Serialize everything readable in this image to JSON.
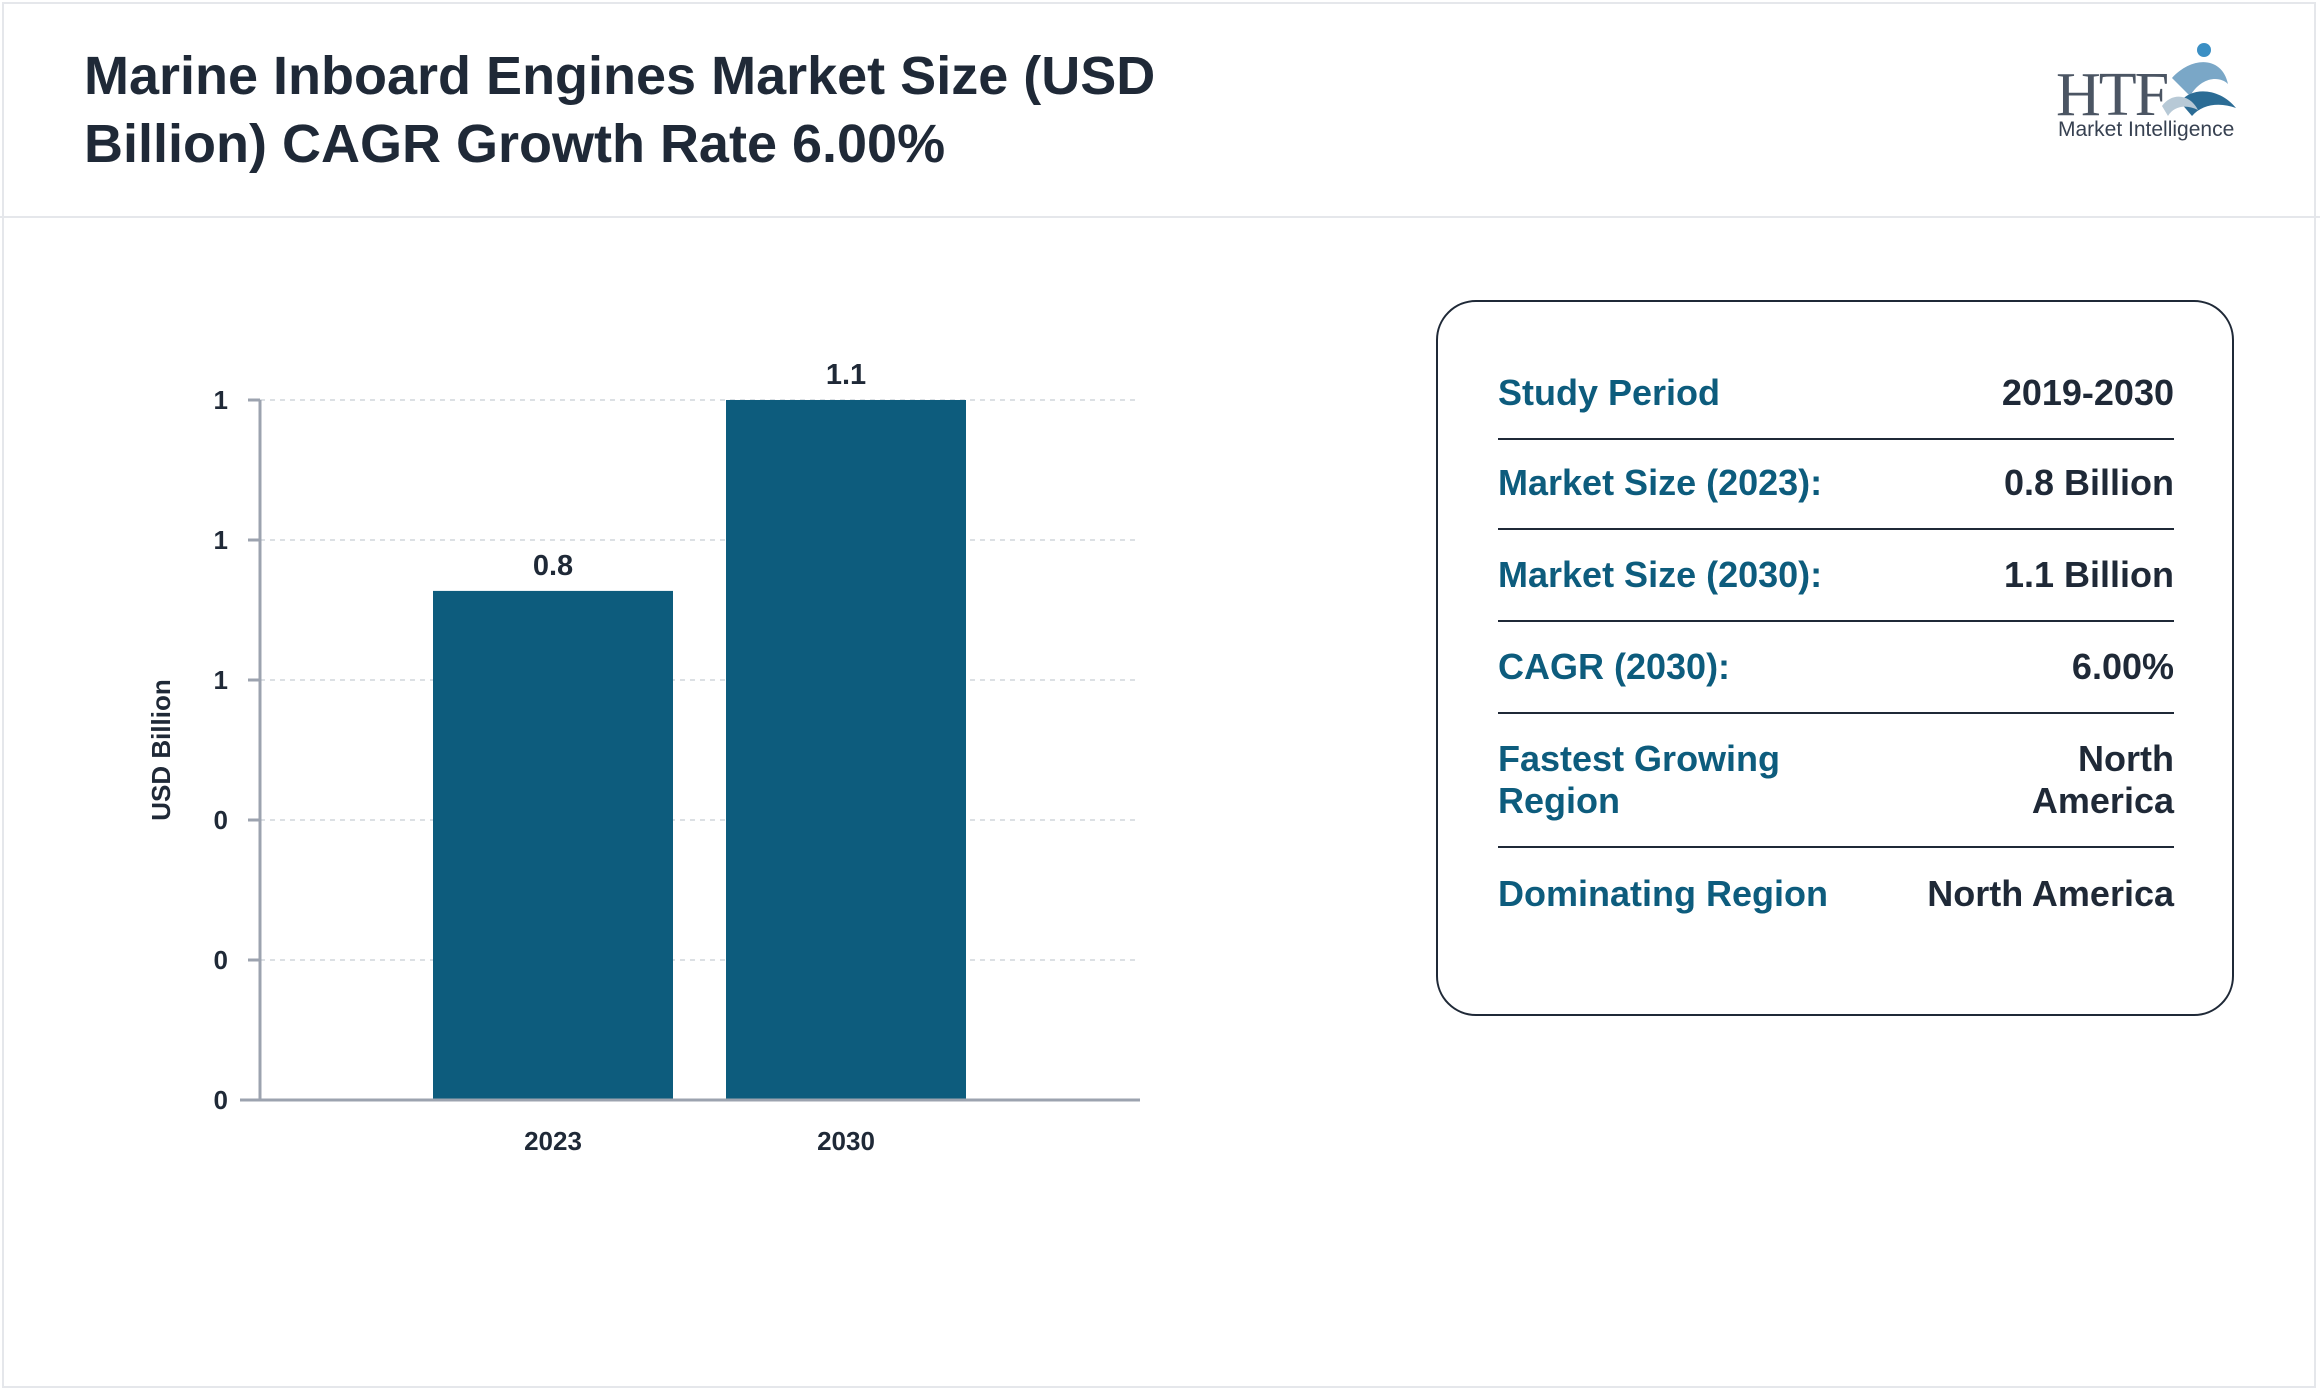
{
  "header": {
    "title_line1": "Marine Inboard Engines Market Size (USD",
    "title_line2": "Billion) CAGR Growth Rate 6.00%",
    "logo_mark": "HTF",
    "logo_sub": "Market Intelligence"
  },
  "colors": {
    "bar": "#0d5c7d",
    "label": "#0d5c7d",
    "text": "#1f2937",
    "axis": "#9ca3af"
  },
  "chart_data": {
    "type": "bar",
    "categories": [
      "2023",
      "2030"
    ],
    "values": [
      0.8,
      1.1
    ],
    "value_labels": [
      "0.8",
      "1.1"
    ],
    "ylabel": "USD Billion",
    "ytick_labels": [
      "0",
      "0",
      "0",
      "1",
      "1",
      "1"
    ],
    "ylim": [
      0,
      1.1
    ],
    "grid": true
  },
  "info": {
    "rows": [
      {
        "label": "Study Period",
        "value": "2019-2030"
      },
      {
        "label": "Market Size (2023):",
        "value": "0.8 Billion"
      },
      {
        "label": "Market Size (2030):",
        "value": "1.1 Billion"
      },
      {
        "label": "CAGR (2030):",
        "value": "6.00%"
      },
      {
        "label": "Fastest Growing Region",
        "value": "North America"
      },
      {
        "label": "Dominating Region",
        "value": "North America"
      }
    ]
  }
}
